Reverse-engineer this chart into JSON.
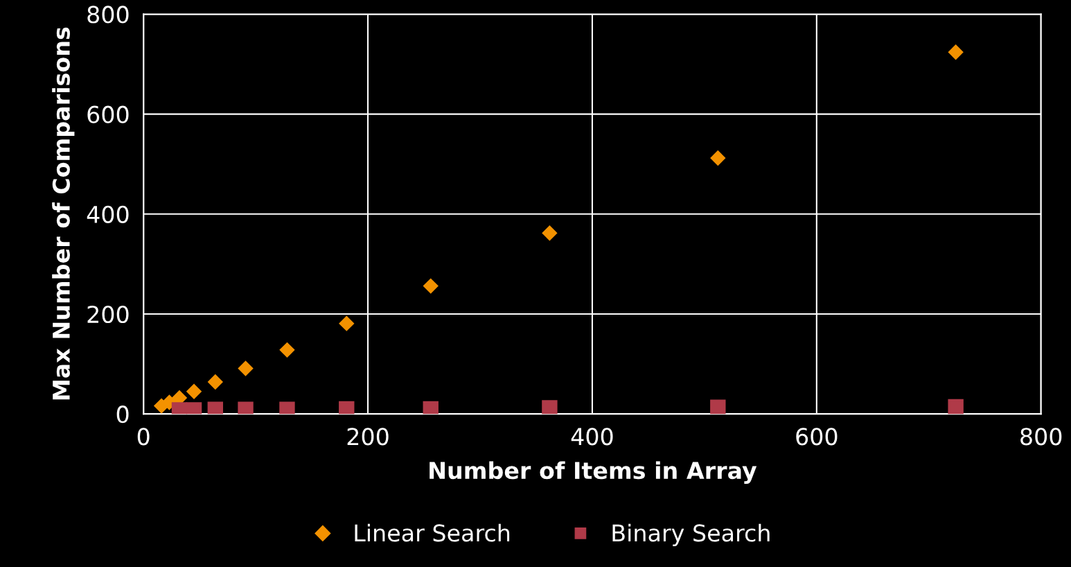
{
  "chart_data": {
    "type": "scatter",
    "xlabel": "Number of Items in Array",
    "ylabel": "Max Number of Comparisons",
    "xlim": [
      0,
      800
    ],
    "xticks": [
      0,
      200,
      400,
      600,
      800
    ],
    "ylim": [
      0,
      800
    ],
    "yticks": [
      0,
      200,
      400,
      600,
      800
    ],
    "grid": true,
    "legend": "bottom",
    "series": [
      {
        "name": "Linear Search",
        "color": "#f39200",
        "marker": "diamond",
        "x": [
          16,
          23,
          32,
          45,
          64,
          91,
          128,
          181,
          256,
          362,
          512,
          724
        ],
        "values": [
          16,
          23,
          32,
          45,
          64,
          91,
          128,
          181,
          256,
          362,
          512,
          724
        ]
      },
      {
        "name": "Binary Search",
        "color": "#b03a48",
        "marker": "square",
        "x": [
          32,
          45,
          64,
          91,
          128,
          181,
          256,
          362,
          512,
          724
        ],
        "values": [
          8,
          8,
          9,
          9,
          9,
          10,
          10,
          12,
          13,
          14
        ]
      }
    ]
  }
}
